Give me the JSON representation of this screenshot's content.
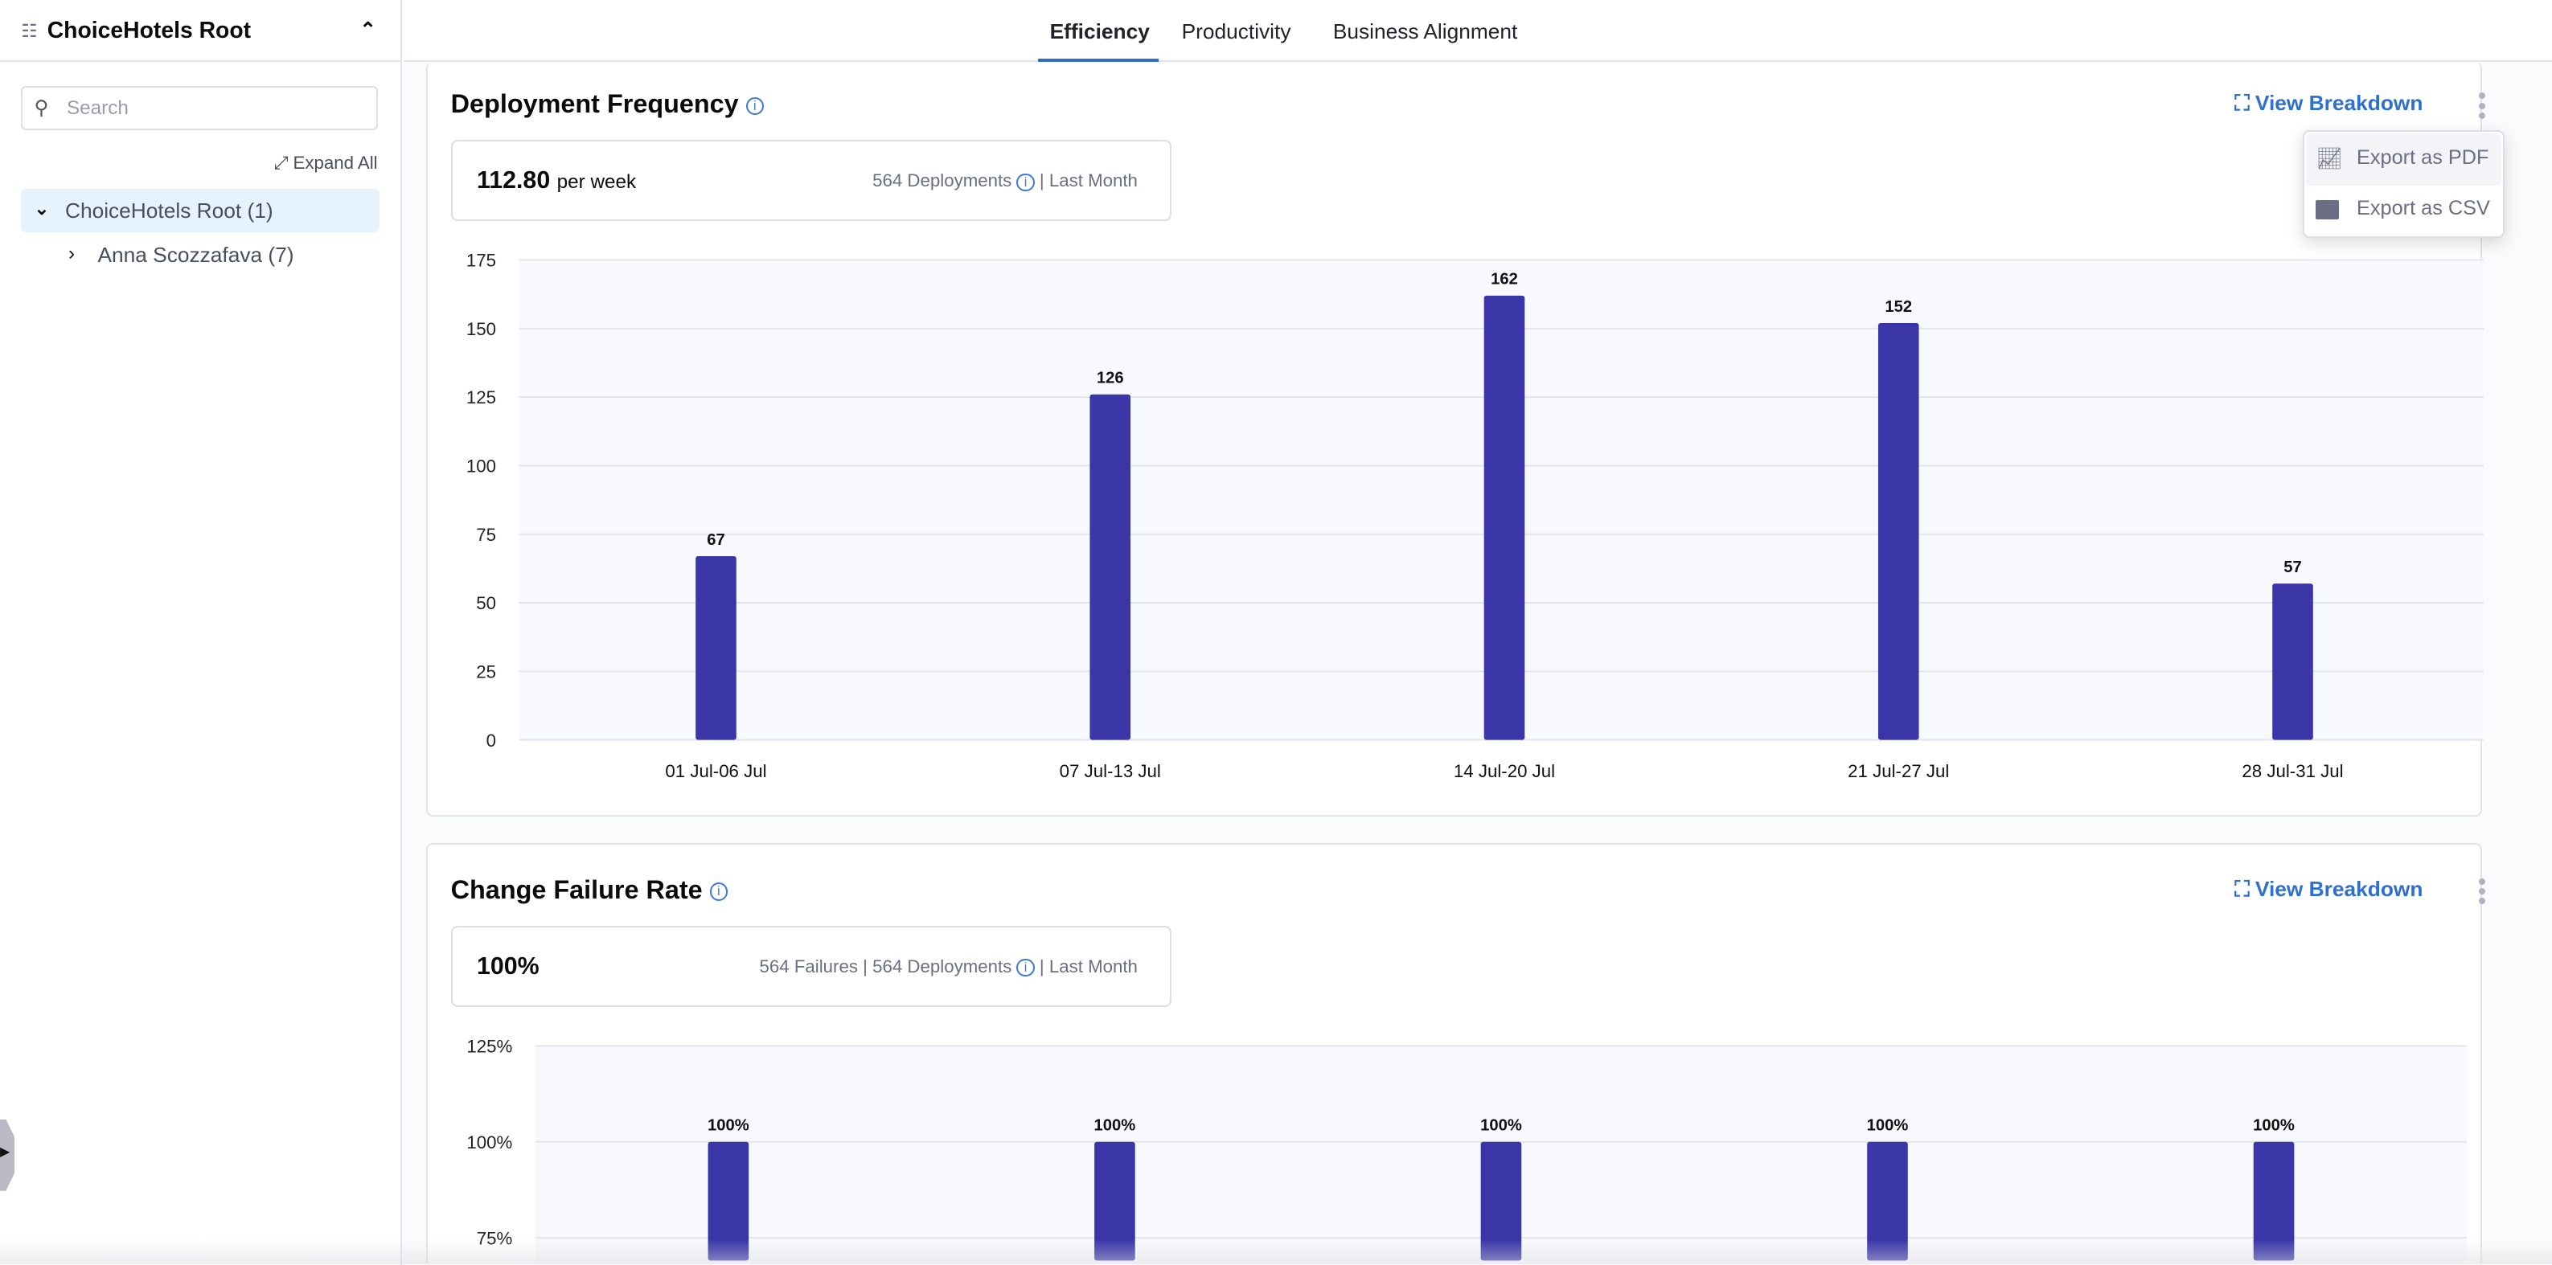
{
  "sidebar": {
    "title": "ChoiceHotels Root",
    "search_placeholder": "Search",
    "expand_all": "Expand All",
    "tree": [
      {
        "label": "ChoiceHotels Root (1)",
        "expanded": true,
        "selected": true
      },
      {
        "label": "Anna Scozzafava (7)",
        "expanded": false
      }
    ]
  },
  "tabs": [
    {
      "label": "Efficiency",
      "active": true
    },
    {
      "label": "Productivity"
    },
    {
      "label": "Business Alignment"
    }
  ],
  "accent": "#2f6fce",
  "bar_color": "#3a36a8",
  "cards": [
    {
      "title": "Deployment Frequency",
      "value": "112.80",
      "unit": "per week",
      "meta1": "564 Deployments",
      "meta2": "Last Month",
      "view_breakdown": "View Breakdown"
    },
    {
      "title": "Change Failure Rate",
      "value": "100%",
      "meta0": "564 Failures",
      "meta1": "564 Deployments",
      "meta2": "Last Month",
      "view_breakdown": "View Breakdown"
    }
  ],
  "menu": {
    "items": [
      {
        "label": "Export as PDF",
        "icon": "chart-plus-icon"
      },
      {
        "label": "Export as CSV",
        "icon": "table-icon"
      }
    ]
  },
  "chart_data": [
    {
      "type": "bar",
      "categories": [
        "01 Jul-06 Jul",
        "07 Jul-13 Jul",
        "14 Jul-20 Jul",
        "21 Jul-27 Jul",
        "28 Jul-31 Jul"
      ],
      "values": [
        67,
        126,
        162,
        152,
        57
      ],
      "labels": [
        "67",
        "126",
        "162",
        "152",
        "57"
      ],
      "ylim": [
        0,
        175
      ],
      "yticks": [
        "0",
        "25",
        "50",
        "75",
        "100",
        "125",
        "150",
        "175"
      ],
      "grid": true
    },
    {
      "type": "bar",
      "categories": [
        "",
        "",
        "",
        "",
        ""
      ],
      "values": [
        100,
        100,
        100,
        100,
        100
      ],
      "labels": [
        "100%",
        "100%",
        "100%",
        "100%",
        "100%"
      ],
      "ylim": [
        0,
        125
      ],
      "yticks": [
        "75%",
        "100%",
        "125%"
      ],
      "ytick_values": [
        75,
        100,
        125
      ],
      "grid": true
    }
  ]
}
